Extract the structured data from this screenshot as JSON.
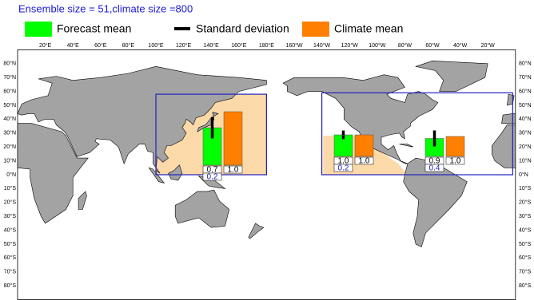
{
  "header": {
    "lines": [
      "Ensemble size = 51,climate size =800"
    ]
  },
  "legend": {
    "items": [
      {
        "label": "Forecast mean",
        "color": "#00ff00"
      },
      {
        "label": "Standard deviation",
        "color": "#000000"
      },
      {
        "label": "Climate mean",
        "color": "#ff7f00"
      }
    ]
  },
  "map": {
    "lon_ticks": [
      "20°E",
      "40°E",
      "60°E",
      "80°E",
      "100°E",
      "120°E",
      "140°E",
      "160°E",
      "180°E",
      "160°W",
      "140°W",
      "120°W",
      "100°W",
      "80°W",
      "60°W",
      "40°W",
      "20°W"
    ],
    "lat_ticks": [
      "80°N",
      "70°N",
      "60°N",
      "50°N",
      "40°N",
      "30°N",
      "20°N",
      "10°N",
      "0°N",
      "10°S",
      "20°S",
      "30°S",
      "40°S",
      "50°S",
      "60°S",
      "70°S",
      "80°S"
    ]
  },
  "regions": [
    {
      "values": {
        "forecast": 0.7,
        "climate": 1,
        "std": 0.2
      },
      "value_labels": {
        "forecast": "0.7",
        "climate": "1.0",
        "std": "0.2"
      }
    },
    {
      "values": {
        "forecast": 1,
        "climate": 1,
        "std": 0.2
      },
      "value_labels": {
        "forecast": "1.0",
        "climate": "1.0",
        "std": "0.2"
      }
    },
    {
      "values": {
        "forecast": 0.9,
        "climate": 1,
        "std": 0.4
      },
      "value_labels": {
        "forecast": "0.9",
        "climate": "1.0",
        "std": "0.4"
      }
    }
  ]
}
